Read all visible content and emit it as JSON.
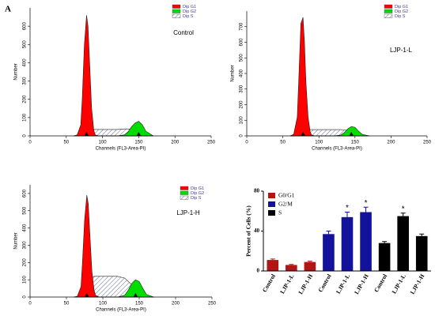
{
  "panel_label": "A",
  "chart_data": [
    {
      "type": "flow",
      "label": "Control",
      "xlabel": "Channels (FL3-Area-PI)",
      "ylabel": "Number",
      "xlim": [
        0,
        250
      ],
      "xticks": [
        0,
        50,
        100,
        150,
        200,
        250
      ],
      "ylim": [
        0,
        700
      ],
      "yticks": [
        0,
        100,
        200,
        300,
        400,
        500,
        600
      ],
      "peak_markers": true,
      "x": [
        60,
        65,
        70,
        72,
        75,
        78,
        80,
        82,
        85,
        88,
        90,
        95,
        100,
        110,
        120,
        130,
        135,
        140,
        145,
        150,
        155,
        160,
        170
      ],
      "series": [
        {
          "name": "Dip G1",
          "color": "#ff0000",
          "values": [
            0,
            5,
            60,
            200,
            500,
            660,
            600,
            420,
            150,
            30,
            5,
            0,
            0,
            0,
            0,
            0,
            0,
            0,
            0,
            0,
            0,
            0,
            0
          ]
        },
        {
          "name": "Dip G2",
          "color": "#00dd00",
          "values": [
            0,
            0,
            0,
            0,
            0,
            0,
            0,
            0,
            0,
            0,
            0,
            0,
            0,
            0,
            0,
            5,
            20,
            50,
            70,
            80,
            60,
            25,
            0
          ]
        },
        {
          "name": "Dip S",
          "color": "#ffffff",
          "hatch": true,
          "values": [
            0,
            0,
            0,
            0,
            0,
            0,
            20,
            30,
            35,
            35,
            35,
            35,
            35,
            35,
            35,
            38,
            38,
            35,
            30,
            25,
            15,
            5,
            0
          ]
        }
      ]
    },
    {
      "type": "flow",
      "label": "LJP-1-L",
      "xlabel": "Channels (FL3-Area-PI)",
      "ylabel": "Number",
      "xlim": [
        0,
        250
      ],
      "xticks": [
        0,
        50,
        100,
        150,
        200,
        250
      ],
      "ylim": [
        0,
        800
      ],
      "yticks": [
        0,
        100,
        200,
        300,
        400,
        500,
        600,
        700
      ],
      "peak_markers": true,
      "x": [
        60,
        65,
        70,
        72,
        75,
        78,
        80,
        82,
        85,
        88,
        90,
        95,
        100,
        110,
        120,
        130,
        135,
        140,
        145,
        150,
        155,
        160,
        170
      ],
      "series": [
        {
          "name": "Dip G1",
          "color": "#ff0000",
          "values": [
            0,
            10,
            120,
            350,
            720,
            760,
            600,
            350,
            120,
            25,
            5,
            0,
            0,
            0,
            0,
            0,
            0,
            0,
            0,
            0,
            0,
            0,
            0
          ]
        },
        {
          "name": "Dip G2",
          "color": "#00dd00",
          "values": [
            0,
            0,
            0,
            0,
            0,
            0,
            0,
            0,
            0,
            0,
            0,
            0,
            0,
            0,
            0,
            5,
            20,
            45,
            60,
            55,
            30,
            10,
            0
          ]
        },
        {
          "name": "Dip S",
          "color": "#ffffff",
          "hatch": true,
          "values": [
            0,
            0,
            0,
            0,
            0,
            0,
            20,
            35,
            40,
            40,
            40,
            40,
            40,
            40,
            40,
            40,
            38,
            35,
            30,
            20,
            10,
            5,
            0
          ]
        }
      ]
    },
    {
      "type": "flow",
      "label": "LJP-1-H",
      "xlabel": "Channels (FL3-Area-PI)",
      "ylabel": "Number",
      "xlim": [
        0,
        250
      ],
      "xticks": [
        0,
        50,
        100,
        150,
        200,
        250
      ],
      "ylim": [
        0,
        650
      ],
      "yticks": [
        0,
        100,
        200,
        300,
        400,
        500,
        600
      ],
      "peak_markers": true,
      "x": [
        60,
        65,
        70,
        72,
        75,
        78,
        80,
        82,
        85,
        88,
        90,
        95,
        100,
        110,
        120,
        130,
        135,
        140,
        145,
        150,
        155,
        160,
        170
      ],
      "series": [
        {
          "name": "Dip G1",
          "color": "#ff0000",
          "values": [
            0,
            5,
            60,
            200,
            450,
            590,
            540,
            380,
            150,
            40,
            10,
            0,
            0,
            0,
            0,
            0,
            0,
            0,
            0,
            0,
            0,
            0,
            0
          ]
        },
        {
          "name": "Dip G2",
          "color": "#00dd00",
          "values": [
            0,
            0,
            0,
            0,
            0,
            0,
            0,
            0,
            0,
            0,
            0,
            0,
            0,
            0,
            0,
            10,
            40,
            80,
            100,
            90,
            50,
            15,
            0
          ]
        },
        {
          "name": "Dip S",
          "color": "#ffffff",
          "hatch": true,
          "values": [
            0,
            0,
            0,
            0,
            0,
            0,
            40,
            90,
            115,
            120,
            120,
            120,
            120,
            120,
            120,
            110,
            90,
            70,
            45,
            25,
            10,
            5,
            0
          ]
        }
      ]
    },
    {
      "type": "bar",
      "ylabel": "Percent of Cells (%)",
      "categories": [
        "Control",
        "LJP-1-L",
        "LJP-1-H",
        "Control",
        "LJP-1-L",
        "LJP-1-H",
        "Control",
        "LJP-1-L",
        "LJP-1-H"
      ],
      "ylim": [
        0,
        80
      ],
      "yticks": [
        0,
        40,
        80
      ],
      "series": [
        {
          "name": "G0/G1",
          "color": "#b01616",
          "values": [
            11,
            6,
            9,
            null,
            null,
            null,
            null,
            null,
            null
          ],
          "errors": [
            1,
            0.5,
            0.8,
            null,
            null,
            null,
            null,
            null,
            null
          ]
        },
        {
          "name": "G2/M",
          "color": "#12129a",
          "values": [
            null,
            null,
            null,
            37,
            54,
            59,
            null,
            null,
            null
          ],
          "errors": [
            null,
            null,
            null,
            3,
            5,
            5,
            null,
            null,
            null
          ],
          "significance": [
            null,
            null,
            null,
            null,
            "*",
            "*",
            null,
            null,
            null
          ]
        },
        {
          "name": "S",
          "color": "#000000",
          "values": [
            null,
            null,
            null,
            null,
            null,
            null,
            28,
            55,
            35
          ],
          "errors": [
            null,
            null,
            null,
            null,
            null,
            null,
            1.5,
            3,
            2
          ],
          "significance": [
            null,
            null,
            null,
            null,
            null,
            null,
            null,
            "*",
            null
          ]
        }
      ]
    }
  ]
}
